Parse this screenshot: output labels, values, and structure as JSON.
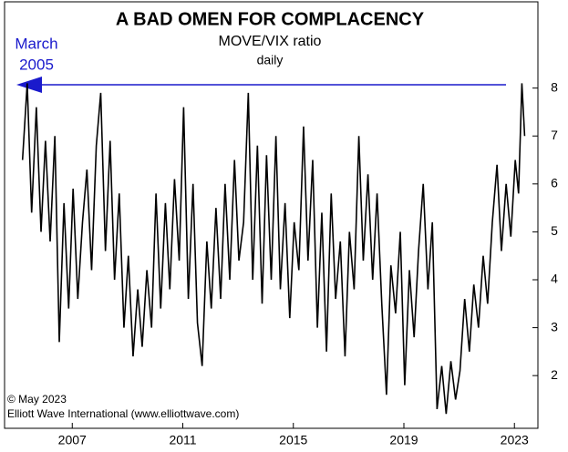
{
  "chart_data": {
    "type": "line",
    "title": "A BAD OMEN FOR COMPLACENCY",
    "subtitle": "MOVE/VIX ratio",
    "frequency_label": "daily",
    "annotation": [
      "March",
      "2005"
    ],
    "credits": [
      "© May 2023",
      "Elliott Wave International (www.elliottwave.com)"
    ],
    "xlim": [
      2004.55,
      2023.85
    ],
    "xticks": [
      2007,
      2011,
      2015,
      2019,
      2023
    ],
    "ylim": [
      0.9,
      9.8
    ],
    "yticks": [
      2,
      3,
      4,
      5,
      6,
      7,
      8
    ],
    "grid": false,
    "series": [
      {
        "name": "MOVE/VIX ratio",
        "color": "#000000",
        "x": [
          2005.2,
          2005.37,
          2005.53,
          2005.7,
          2005.87,
          2006.03,
          2006.2,
          2006.37,
          2006.53,
          2006.7,
          2006.87,
          2007.03,
          2007.2,
          2007.37,
          2007.53,
          2007.7,
          2007.87,
          2008.03,
          2008.2,
          2008.37,
          2008.53,
          2008.7,
          2008.87,
          2009.03,
          2009.2,
          2009.37,
          2009.53,
          2009.7,
          2009.87,
          2010.03,
          2010.2,
          2010.37,
          2010.53,
          2010.7,
          2010.87,
          2011.03,
          2011.2,
          2011.37,
          2011.53,
          2011.7,
          2011.87,
          2012.03,
          2012.2,
          2012.37,
          2012.53,
          2012.7,
          2012.87,
          2013.03,
          2013.2,
          2013.37,
          2013.53,
          2013.7,
          2013.87,
          2014.03,
          2014.2,
          2014.37,
          2014.53,
          2014.7,
          2014.87,
          2015.03,
          2015.2,
          2015.37,
          2015.53,
          2015.7,
          2015.87,
          2016.03,
          2016.2,
          2016.37,
          2016.53,
          2016.7,
          2016.87,
          2017.03,
          2017.2,
          2017.37,
          2017.53,
          2017.7,
          2017.87,
          2018.03,
          2018.2,
          2018.37,
          2018.53,
          2018.7,
          2018.87,
          2019.03,
          2019.2,
          2019.37,
          2019.53,
          2019.7,
          2019.87,
          2020.03,
          2020.2,
          2020.37,
          2020.53,
          2020.7,
          2020.87,
          2021.03,
          2021.2,
          2021.37,
          2021.53,
          2021.7,
          2021.87,
          2022.03,
          2022.2,
          2022.37,
          2022.53,
          2022.7,
          2022.87,
          2023.03,
          2023.15,
          2023.27,
          2023.37
        ],
        "values": [
          6.5,
          8.1,
          5.4,
          7.6,
          5.0,
          6.9,
          4.8,
          7.0,
          2.7,
          5.6,
          3.4,
          5.9,
          3.6,
          5.2,
          6.3,
          4.2,
          6.8,
          7.9,
          4.6,
          6.9,
          4.0,
          5.8,
          3.0,
          4.5,
          2.4,
          3.8,
          2.6,
          4.2,
          3.0,
          5.8,
          3.4,
          5.6,
          3.8,
          6.1,
          4.4,
          7.6,
          3.6,
          6.0,
          3.1,
          2.2,
          4.8,
          3.4,
          5.5,
          3.6,
          6.0,
          4.0,
          6.5,
          4.4,
          5.2,
          7.9,
          4.0,
          6.8,
          3.5,
          6.6,
          4.0,
          7.0,
          3.8,
          5.6,
          3.2,
          5.2,
          4.2,
          7.2,
          4.4,
          6.5,
          3.0,
          5.4,
          2.5,
          5.8,
          3.6,
          4.8,
          2.4,
          5.0,
          3.8,
          7.0,
          4.4,
          6.2,
          4.0,
          5.8,
          3.5,
          1.6,
          4.3,
          3.3,
          5.0,
          1.8,
          4.2,
          2.8,
          4.6,
          6.0,
          3.8,
          5.2,
          1.3,
          2.2,
          1.2,
          2.3,
          1.5,
          2.1,
          3.6,
          2.5,
          3.9,
          3.0,
          4.5,
          3.5,
          5.2,
          6.4,
          4.6,
          6.0,
          4.9,
          6.5,
          5.8,
          8.1,
          7.0
        ]
      }
    ],
    "arrow_color": "#1a1acc"
  }
}
